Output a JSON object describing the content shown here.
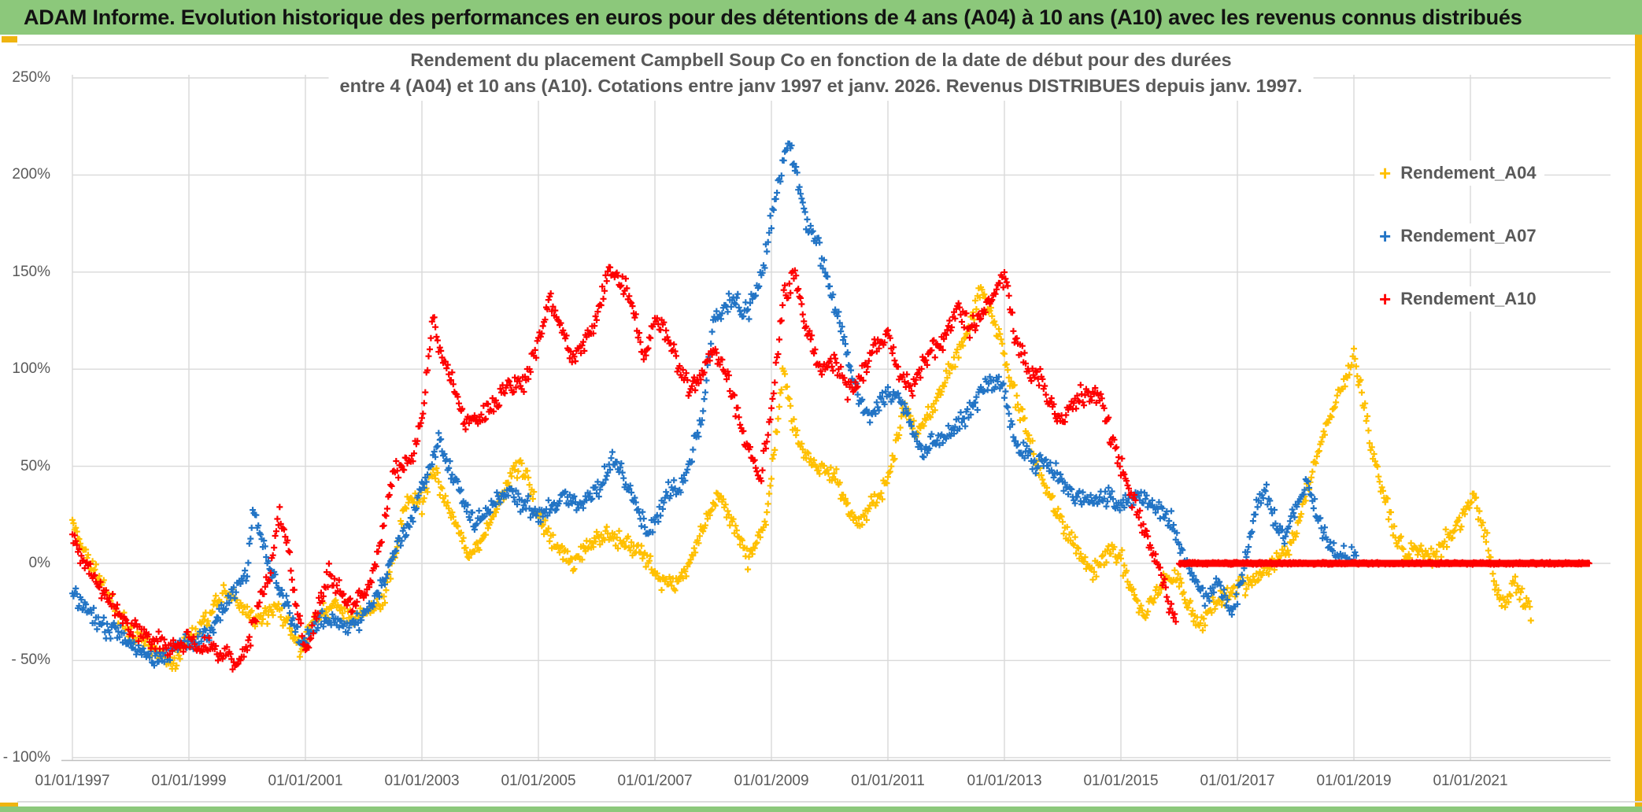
{
  "header": {
    "title": "ADAM Informe. Evolution historique des performances en euros pour des détentions de 4 ans (A04) à 10 ans (A10) avec les revenus connus distribués"
  },
  "accent_colors": {
    "header_green": "#8CC87B",
    "border_gold": "#EFB410",
    "grid_gray": "#D9D9D9",
    "axis_text_gray": "#595959"
  },
  "chart_data": {
    "type": "scatter",
    "marker": "plus",
    "title_line1": "Rendement du placement Campbell Soup Co en fonction de la date de début pour des durées",
    "title_line2": "entre 4 (A04) et 10 ans (A10). Cotations entre janv 1997 et janv. 2026. Revenus DISTRIBUES depuis janv. 1997.",
    "grid": true,
    "legend_position": "right-inside",
    "x_axis_years": [
      1997.0,
      2023.4
    ],
    "y_axis_pct": [
      -100,
      250
    ],
    "x_ticks": [
      "01/01/1997",
      "01/01/1999",
      "01/01/2001",
      "01/01/2003",
      "01/01/2005",
      "01/01/2007",
      "01/01/2009",
      "01/01/2011",
      "01/01/2013",
      "01/01/2015",
      "01/01/2017",
      "01/01/2019",
      "01/01/2021"
    ],
    "x_tick_years": [
      1997,
      1999,
      2001,
      2003,
      2005,
      2007,
      2009,
      2011,
      2013,
      2015,
      2017,
      2019,
      2021
    ],
    "y_tick_labels": [
      "250%",
      "200%",
      "150%",
      "100%",
      "50%",
      "0%",
      "- 50%",
      "- 100%"
    ],
    "y_tick_values": [
      250,
      200,
      150,
      100,
      50,
      0,
      -50,
      -100
    ],
    "points_per_year": 52,
    "series": [
      {
        "name": "Rendement_A04",
        "color": "#FFC000",
        "noise_pct": 5.0,
        "anchors": [
          [
            1997.0,
            20
          ],
          [
            1997.2,
            8
          ],
          [
            1997.4,
            -5
          ],
          [
            1997.6,
            -15
          ],
          [
            1997.8,
            -28
          ],
          [
            1998.0,
            -35
          ],
          [
            1998.3,
            -42
          ],
          [
            1998.55,
            -48
          ],
          [
            1998.7,
            -52
          ],
          [
            1998.85,
            -45
          ],
          [
            1999.0,
            -38
          ],
          [
            1999.3,
            -30
          ],
          [
            1999.6,
            -15
          ],
          [
            1999.9,
            -22
          ],
          [
            2000.2,
            -30
          ],
          [
            2000.5,
            -22
          ],
          [
            2000.7,
            -30
          ],
          [
            2000.9,
            -45
          ],
          [
            2001.1,
            -32
          ],
          [
            2001.3,
            -25
          ],
          [
            2001.5,
            -22
          ],
          [
            2001.8,
            -28
          ],
          [
            2002.1,
            -25
          ],
          [
            2002.35,
            -18
          ],
          [
            2002.6,
            15
          ],
          [
            2002.8,
            35
          ],
          [
            2003.0,
            30
          ],
          [
            2003.2,
            48
          ],
          [
            2003.5,
            25
          ],
          [
            2003.8,
            5
          ],
          [
            2004.0,
            10
          ],
          [
            2004.3,
            30
          ],
          [
            2004.6,
            50
          ],
          [
            2004.8,
            45
          ],
          [
            2005.0,
            25
          ],
          [
            2005.3,
            10
          ],
          [
            2005.6,
            0
          ],
          [
            2005.9,
            10
          ],
          [
            2006.2,
            15
          ],
          [
            2006.5,
            10
          ],
          [
            2006.8,
            5
          ],
          [
            2007.1,
            -8
          ],
          [
            2007.35,
            -12
          ],
          [
            2007.6,
            0
          ],
          [
            2007.9,
            25
          ],
          [
            2008.1,
            35
          ],
          [
            2008.35,
            20
          ],
          [
            2008.6,
            3
          ],
          [
            2008.9,
            20
          ],
          [
            2009.1,
            70
          ],
          [
            2009.2,
            100
          ],
          [
            2009.35,
            75
          ],
          [
            2009.55,
            58
          ],
          [
            2009.8,
            50
          ],
          [
            2010.1,
            45
          ],
          [
            2010.35,
            25
          ],
          [
            2010.55,
            22
          ],
          [
            2010.8,
            32
          ],
          [
            2011.05,
            48
          ],
          [
            2011.25,
            80
          ],
          [
            2011.5,
            68
          ],
          [
            2011.75,
            80
          ],
          [
            2012.0,
            95
          ],
          [
            2012.3,
            115
          ],
          [
            2012.6,
            140
          ],
          [
            2012.9,
            120
          ],
          [
            2013.1,
            95
          ],
          [
            2013.4,
            65
          ],
          [
            2013.7,
            40
          ],
          [
            2014.0,
            20
          ],
          [
            2014.3,
            5
          ],
          [
            2014.5,
            -5
          ],
          [
            2014.8,
            8
          ],
          [
            2015.0,
            2
          ],
          [
            2015.2,
            -15
          ],
          [
            2015.4,
            -28
          ],
          [
            2015.6,
            -15
          ],
          [
            2015.8,
            -8
          ],
          [
            2016.0,
            -10
          ],
          [
            2016.2,
            -25
          ],
          [
            2016.4,
            -30
          ],
          [
            2016.6,
            -20
          ],
          [
            2016.9,
            -15
          ],
          [
            2017.2,
            -10
          ],
          [
            2017.5,
            -3
          ],
          [
            2017.8,
            5
          ],
          [
            2018.0,
            15
          ],
          [
            2018.2,
            38
          ],
          [
            2018.4,
            60
          ],
          [
            2018.6,
            78
          ],
          [
            2018.8,
            88
          ],
          [
            2019.0,
            108
          ],
          [
            2019.15,
            85
          ],
          [
            2019.3,
            60
          ],
          [
            2019.5,
            35
          ],
          [
            2019.7,
            15
          ],
          [
            2019.9,
            5
          ],
          [
            2020.1,
            8
          ],
          [
            2020.3,
            3
          ],
          [
            2020.5,
            8
          ],
          [
            2020.7,
            15
          ],
          [
            2020.9,
            25
          ],
          [
            2021.05,
            35
          ],
          [
            2021.2,
            20
          ],
          [
            2021.3,
            10
          ],
          [
            2021.45,
            -18
          ],
          [
            2021.6,
            -22
          ],
          [
            2021.75,
            -10
          ],
          [
            2021.9,
            -20
          ],
          [
            2022.05,
            -25
          ]
        ]
      },
      {
        "name": "Rendement_A07",
        "color": "#2274C5",
        "noise_pct": 5.0,
        "anchors": [
          [
            1997.0,
            -15
          ],
          [
            1997.3,
            -25
          ],
          [
            1997.6,
            -33
          ],
          [
            1997.9,
            -38
          ],
          [
            1998.2,
            -46
          ],
          [
            1998.5,
            -50
          ],
          [
            1998.8,
            -43
          ],
          [
            1999.1,
            -40
          ],
          [
            1999.4,
            -33
          ],
          [
            1999.7,
            -18
          ],
          [
            2000.0,
            -5
          ],
          [
            2000.1,
            28
          ],
          [
            2000.25,
            12
          ],
          [
            2000.45,
            -8
          ],
          [
            2000.7,
            -22
          ],
          [
            2000.95,
            -42
          ],
          [
            2001.2,
            -30
          ],
          [
            2001.5,
            -28
          ],
          [
            2001.8,
            -32
          ],
          [
            2002.1,
            -25
          ],
          [
            2002.35,
            -10
          ],
          [
            2002.55,
            8
          ],
          [
            2002.75,
            18
          ],
          [
            2003.0,
            40
          ],
          [
            2003.3,
            62
          ],
          [
            2003.6,
            40
          ],
          [
            2003.9,
            18
          ],
          [
            2004.2,
            30
          ],
          [
            2004.5,
            38
          ],
          [
            2004.8,
            30
          ],
          [
            2005.1,
            25
          ],
          [
            2005.4,
            35
          ],
          [
            2005.7,
            30
          ],
          [
            2006.0,
            35
          ],
          [
            2006.3,
            55
          ],
          [
            2006.6,
            35
          ],
          [
            2006.9,
            15
          ],
          [
            2007.2,
            35
          ],
          [
            2007.5,
            42
          ],
          [
            2007.8,
            75
          ],
          [
            2008.0,
            125
          ],
          [
            2008.3,
            135
          ],
          [
            2008.6,
            130
          ],
          [
            2008.85,
            150
          ],
          [
            2009.1,
            195
          ],
          [
            2009.3,
            218
          ],
          [
            2009.45,
            195
          ],
          [
            2009.6,
            175
          ],
          [
            2009.8,
            165
          ],
          [
            2010.0,
            140
          ],
          [
            2010.2,
            120
          ],
          [
            2010.45,
            90
          ],
          [
            2010.7,
            75
          ],
          [
            2011.0,
            88
          ],
          [
            2011.3,
            80
          ],
          [
            2011.55,
            58
          ],
          [
            2011.8,
            62
          ],
          [
            2012.1,
            68
          ],
          [
            2012.4,
            78
          ],
          [
            2012.7,
            92
          ],
          [
            2012.95,
            95
          ],
          [
            2013.2,
            60
          ],
          [
            2013.5,
            52
          ],
          [
            2013.8,
            50
          ],
          [
            2014.1,
            38
          ],
          [
            2014.4,
            32
          ],
          [
            2014.7,
            35
          ],
          [
            2015.0,
            30
          ],
          [
            2015.3,
            35
          ],
          [
            2015.6,
            30
          ],
          [
            2015.85,
            22
          ],
          [
            2016.1,
            0
          ],
          [
            2016.35,
            -12
          ],
          [
            2016.5,
            -18
          ],
          [
            2016.65,
            -8
          ],
          [
            2016.9,
            -26
          ],
          [
            2017.1,
            -5
          ],
          [
            2017.35,
            32
          ],
          [
            2017.5,
            38
          ],
          [
            2017.65,
            22
          ],
          [
            2017.8,
            12
          ],
          [
            2018.0,
            28
          ],
          [
            2018.2,
            42
          ],
          [
            2018.4,
            22
          ],
          [
            2018.6,
            8
          ],
          [
            2018.8,
            5
          ],
          [
            2019.05,
            2
          ]
        ]
      },
      {
        "name": "Rendement_A10",
        "color": "#FE0000",
        "noise_pct": 5.5,
        "anchors": [
          [
            1997.0,
            16
          ],
          [
            1997.2,
            2
          ],
          [
            1997.4,
            -8
          ],
          [
            1997.6,
            -18
          ],
          [
            1997.8,
            -25
          ],
          [
            1998.0,
            -32
          ],
          [
            1998.3,
            -38
          ],
          [
            1998.6,
            -43
          ],
          [
            1998.9,
            -40
          ],
          [
            1999.2,
            -42
          ],
          [
            1999.5,
            -45
          ],
          [
            1999.8,
            -50
          ],
          [
            2000.0,
            -46
          ],
          [
            2000.2,
            -20
          ],
          [
            2000.4,
            -5
          ],
          [
            2000.55,
            25
          ],
          [
            2000.7,
            8
          ],
          [
            2000.85,
            -25
          ],
          [
            2001.0,
            -44
          ],
          [
            2001.2,
            -25
          ],
          [
            2001.4,
            -6
          ],
          [
            2001.6,
            -15
          ],
          [
            2001.8,
            -22
          ],
          [
            2002.0,
            -15
          ],
          [
            2002.2,
            0
          ],
          [
            2002.35,
            20
          ],
          [
            2002.5,
            45
          ],
          [
            2002.7,
            50
          ],
          [
            2002.9,
            60
          ],
          [
            2003.05,
            85
          ],
          [
            2003.2,
            128
          ],
          [
            2003.35,
            105
          ],
          [
            2003.5,
            95
          ],
          [
            2003.65,
            80
          ],
          [
            2003.8,
            70
          ],
          [
            2004.0,
            75
          ],
          [
            2004.2,
            80
          ],
          [
            2004.4,
            88
          ],
          [
            2004.6,
            92
          ],
          [
            2004.8,
            95
          ],
          [
            2005.0,
            115
          ],
          [
            2005.2,
            138
          ],
          [
            2005.4,
            120
          ],
          [
            2005.6,
            105
          ],
          [
            2005.8,
            115
          ],
          [
            2006.0,
            125
          ],
          [
            2006.2,
            152
          ],
          [
            2006.4,
            148
          ],
          [
            2006.6,
            135
          ],
          [
            2006.8,
            105
          ],
          [
            2007.0,
            125
          ],
          [
            2007.2,
            118
          ],
          [
            2007.45,
            100
          ],
          [
            2007.6,
            88
          ],
          [
            2007.8,
            98
          ],
          [
            2008.0,
            108
          ],
          [
            2008.2,
            100
          ],
          [
            2008.5,
            70
          ],
          [
            2008.8,
            42
          ],
          [
            2009.0,
            80
          ],
          [
            2009.2,
            135
          ],
          [
            2009.4,
            148
          ],
          [
            2009.6,
            120
          ],
          [
            2009.85,
            98
          ],
          [
            2010.1,
            105
          ],
          [
            2010.35,
            88
          ],
          [
            2010.6,
            100
          ],
          [
            2010.8,
            112
          ],
          [
            2011.0,
            118
          ],
          [
            2011.2,
            100
          ],
          [
            2011.4,
            88
          ],
          [
            2011.6,
            102
          ],
          [
            2011.8,
            112
          ],
          [
            2012.0,
            118
          ],
          [
            2012.2,
            132
          ],
          [
            2012.4,
            120
          ],
          [
            2012.6,
            128
          ],
          [
            2012.8,
            138
          ],
          [
            2013.0,
            148
          ],
          [
            2013.2,
            115
          ],
          [
            2013.4,
            100
          ],
          [
            2013.6,
            95
          ],
          [
            2013.8,
            82
          ],
          [
            2014.0,
            75
          ],
          [
            2014.3,
            85
          ],
          [
            2014.6,
            88
          ],
          [
            2014.8,
            70
          ],
          [
            2015.0,
            50
          ],
          [
            2015.2,
            32
          ],
          [
            2015.4,
            18
          ],
          [
            2015.6,
            2
          ],
          [
            2015.8,
            -18
          ],
          [
            2015.95,
            -30
          ]
        ],
        "flat_zero_segment": {
          "from_year": 2016.0,
          "to_year": 2023.05,
          "value_pct": 0
        }
      }
    ]
  }
}
